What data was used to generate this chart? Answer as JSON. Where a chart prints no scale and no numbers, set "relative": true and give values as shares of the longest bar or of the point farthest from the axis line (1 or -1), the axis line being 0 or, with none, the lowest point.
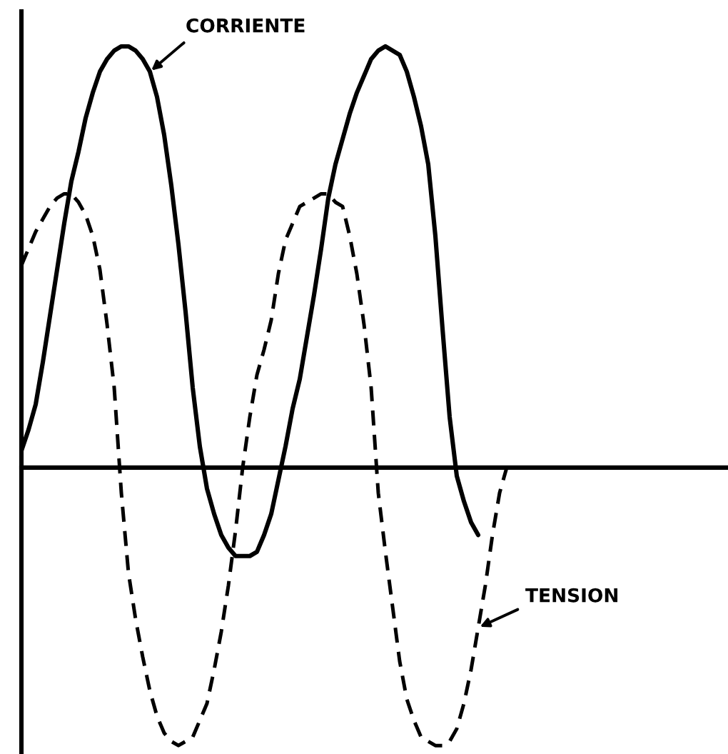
{
  "chart_data": {
    "type": "line",
    "relative": true,
    "categories": [
      null,
      null,
      null,
      null,
      null,
      null,
      null,
      null,
      null,
      null,
      null,
      null,
      null,
      null,
      null,
      null,
      null,
      null,
      null,
      null,
      null,
      null,
      null,
      null,
      null,
      null,
      null,
      null,
      null,
      null,
      null,
      null,
      null,
      null,
      null,
      null,
      null,
      null,
      null,
      null,
      null,
      null,
      null,
      null,
      null,
      null,
      null,
      null,
      null,
      null,
      null,
      null,
      null,
      null,
      null,
      null,
      null,
      null,
      null,
      null,
      null,
      null,
      null,
      null,
      null,
      null,
      null,
      null,
      null,
      null,
      null,
      null,
      null,
      null,
      null,
      null,
      null,
      null,
      null,
      null,
      null,
      null,
      null,
      null,
      null,
      null,
      null,
      null,
      null,
      null,
      null,
      null,
      null,
      null,
      null,
      null,
      null,
      null,
      null,
      null
    ],
    "series": [
      {
        "name": "CORRIENTE",
        "color": "#000000",
        "line_style": "solid",
        "values": [
          0.04,
          0.09,
          0.15,
          0.25,
          0.36,
          0.47,
          0.58,
          0.68,
          0.75,
          0.83,
          0.89,
          0.94,
          0.97,
          0.99,
          1.0,
          1.0,
          0.99,
          0.97,
          0.94,
          0.88,
          0.79,
          0.67,
          0.53,
          0.37,
          0.19,
          0.05,
          -0.05,
          -0.11,
          -0.16,
          -0.19,
          -0.21,
          -0.21,
          -0.21,
          -0.2,
          -0.16,
          -0.11,
          -0.03,
          0.05,
          0.14,
          0.21,
          0.31,
          0.41,
          0.52,
          0.64,
          0.72,
          0.78,
          0.84,
          0.89,
          0.93,
          0.97,
          0.99,
          1.0,
          0.99,
          0.98,
          0.94,
          0.88,
          0.81,
          0.72,
          0.55,
          0.33,
          0.12,
          -0.02,
          -0.08,
          -0.13,
          -0.16,
          null,
          null,
          null,
          null,
          null,
          null,
          null,
          null,
          null,
          null,
          null,
          null,
          null,
          null,
          null,
          null,
          null,
          null,
          null,
          null,
          null,
          null,
          null,
          null,
          null,
          null,
          null,
          null,
          null,
          null,
          null,
          null,
          null,
          null,
          null
        ]
      },
      {
        "name": "TENSION",
        "color": "#000000",
        "line_style": "dashed",
        "values": [
          0.48,
          0.52,
          0.56,
          0.59,
          0.62,
          0.64,
          0.65,
          0.65,
          0.63,
          0.6,
          0.55,
          0.47,
          0.34,
          0.19,
          -0.06,
          -0.25,
          -0.36,
          -0.45,
          -0.53,
          -0.59,
          -0.63,
          -0.65,
          -0.66,
          -0.65,
          -0.64,
          -0.6,
          -0.56,
          -0.48,
          -0.39,
          -0.28,
          -0.15,
          0.0,
          0.12,
          0.22,
          0.28,
          0.35,
          0.46,
          0.54,
          0.58,
          0.62,
          0.63,
          0.64,
          0.65,
          0.65,
          0.63,
          0.62,
          0.55,
          0.46,
          0.34,
          0.19,
          -0.06,
          -0.2,
          -0.33,
          -0.46,
          -0.55,
          -0.6,
          -0.64,
          -0.65,
          -0.66,
          -0.66,
          -0.65,
          -0.62,
          -0.56,
          -0.48,
          -0.38,
          -0.28,
          -0.16,
          -0.06,
          0.0,
          null,
          null,
          null,
          null,
          null,
          null,
          null,
          null,
          null,
          null,
          null,
          null,
          null,
          null,
          null,
          null,
          null,
          null,
          null,
          null,
          null,
          null,
          null,
          null,
          null,
          null,
          null,
          null,
          null,
          null,
          null
        ]
      }
    ]
  }
}
